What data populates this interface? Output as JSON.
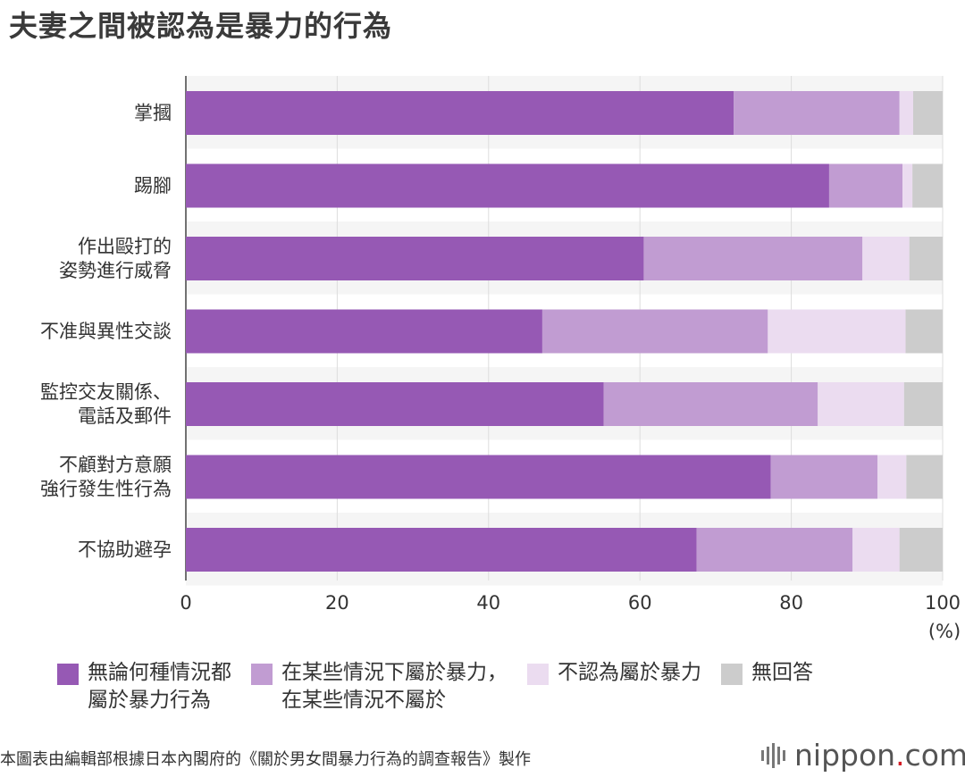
{
  "title": "夫妻之間被認為是暴力的行為",
  "source": "本圖表由編輯部根據日本內閣府的《關於男女間暴力行為的調查報告》製作",
  "logo": {
    "name": "nippon",
    "dot": ".",
    "tld": "com"
  },
  "colors": {
    "s1": "#9659b4",
    "s2": "#c19cd2",
    "s3": "#ebdcf0",
    "s4": "#cccccc",
    "band": "#f5f5f5",
    "grid": "#dddddd"
  },
  "chart_data": {
    "type": "bar",
    "orientation": "horizontal",
    "stacked": true,
    "title": "夫妻之間被認為是暴力的行為",
    "unit_label": "(%)",
    "xlim": [
      0,
      100
    ],
    "xticks": [
      0,
      20,
      40,
      60,
      80,
      100
    ],
    "grid": true,
    "legend_position": "bottom",
    "categories": [
      "掌摑",
      "踢腳",
      "作出毆打的\n姿勢進行威脅",
      "不准與異性交談",
      "監控交友關係、\n電話及郵件",
      "不顧對方意願\n強行發生性行為",
      "不協助避孕"
    ],
    "series": [
      {
        "name": "無論何種情況都\n屬於暴力行為",
        "color": "#9659b4",
        "values": [
          72.4,
          85.0,
          60.5,
          47.1,
          55.2,
          77.3,
          67.5
        ]
      },
      {
        "name": "在某些情況下屬於暴力，\n在某些情況不屬於",
        "color": "#c19cd2",
        "values": [
          21.9,
          9.7,
          28.9,
          29.8,
          28.3,
          14.1,
          20.6
        ]
      },
      {
        "name": "不認為屬於暴力",
        "color": "#ebdcf0",
        "values": [
          1.8,
          1.3,
          6.2,
          18.2,
          11.4,
          3.8,
          6.2
        ]
      },
      {
        "name": "無回答",
        "color": "#cccccc",
        "values": [
          3.9,
          4.0,
          4.4,
          4.9,
          5.1,
          4.8,
          5.7
        ]
      }
    ]
  }
}
